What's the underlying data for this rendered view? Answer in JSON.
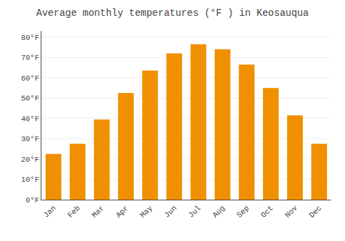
{
  "chart_data": {
    "type": "bar",
    "title": "Average monthly temperatures (°F ) in Keosauqua",
    "categories": [
      "Jan",
      "Feb",
      "Mar",
      "Apr",
      "May",
      "Jun",
      "Jul",
      "Aug",
      "Sep",
      "Oct",
      "Nov",
      "Dec"
    ],
    "values": [
      22.5,
      27.5,
      39.5,
      52.5,
      63.5,
      72.0,
      76.5,
      74.0,
      66.5,
      55.0,
      41.5,
      27.5
    ],
    "color": "#F09000",
    "ylim": [
      0,
      83
    ],
    "yticks": [
      {
        "value": 0,
        "label": "0°F"
      },
      {
        "value": 10,
        "label": "10°F"
      },
      {
        "value": 20,
        "label": "20°F"
      },
      {
        "value": 30,
        "label": "30°F"
      },
      {
        "value": 40,
        "label": "40°F"
      },
      {
        "value": 50,
        "label": "50°F"
      },
      {
        "value": 60,
        "label": "60°F"
      },
      {
        "value": 70,
        "label": "70°F"
      },
      {
        "value": 80,
        "label": "80°F"
      }
    ],
    "grid": true
  }
}
